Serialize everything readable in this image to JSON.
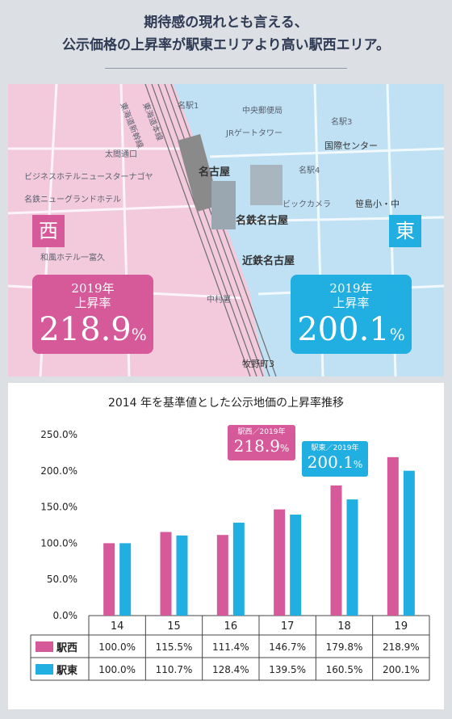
{
  "headline": {
    "line1": "期待感の現れとも言える、",
    "line2": "公示価格の上昇率が駅東エリアより高い駅西エリア。"
  },
  "map": {
    "west_badge": "西",
    "east_badge": "東",
    "west_box": {
      "year": "2019年",
      "label": "上昇率",
      "value": "218.9",
      "unit": "%"
    },
    "east_box": {
      "year": "2019年",
      "label": "上昇率",
      "value": "200.1",
      "unit": "%"
    },
    "labels": {
      "meieki1": "名駅1",
      "chuo_post": "中央郵便局",
      "jr_tower": "JRゲートタワー",
      "meieki3": "名駅3",
      "kokusai": "国際センター",
      "meieki4": "名駅4",
      "nagoya": "名古屋",
      "kintetsu_nagoya": "近鉄名古屋",
      "meitetsu_nagoya": "名鉄名古屋",
      "nakamura": "中村署",
      "makinocho": "牧野町3",
      "taikodori": "太閤通口",
      "shinkansen": "東海道新幹線",
      "tokaido_line": "東海道本線",
      "bic": "ビックカメラ",
      "sasashima": "笹島小・中",
      "business_hotel": "ビジネスホテルニュースターナゴヤ",
      "grand_hotel": "名鉄ニューグランドホテル",
      "hotel_wafu": "和風ホテル一富久"
    }
  },
  "chart_title": "2014 年を基準値とした公示地価の上昇率推移",
  "callouts": {
    "west": {
      "small": "駅西／2019年",
      "value": "218.9",
      "unit": "%"
    },
    "east": {
      "small": "駅東／2019年",
      "value": "200.1",
      "unit": "%"
    }
  },
  "colors": {
    "west": "#d65a9a",
    "east": "#21aee0"
  },
  "chart_data": {
    "type": "bar",
    "title": "2014 年を基準値とした公示地価の上昇率推移",
    "categories": [
      "14",
      "15",
      "16",
      "17",
      "18",
      "19"
    ],
    "series": [
      {
        "name": "駅西",
        "values": [
          100.0,
          115.5,
          111.4,
          146.7,
          179.8,
          218.9
        ]
      },
      {
        "name": "駅東",
        "values": [
          100.0,
          110.7,
          128.4,
          139.5,
          160.5,
          200.1
        ]
      }
    ],
    "ylim": [
      0,
      250
    ],
    "yticks": [
      "0.0%",
      "50.0%",
      "100.0%",
      "150.0%",
      "200.0%",
      "250.0%"
    ],
    "grid": false,
    "table": {
      "west": [
        "100.0%",
        "115.5%",
        "111.4%",
        "146.7%",
        "179.8%",
        "218.9%"
      ],
      "east": [
        "100.0%",
        "110.7%",
        "128.4%",
        "139.5%",
        "160.5%",
        "200.1%"
      ]
    }
  }
}
